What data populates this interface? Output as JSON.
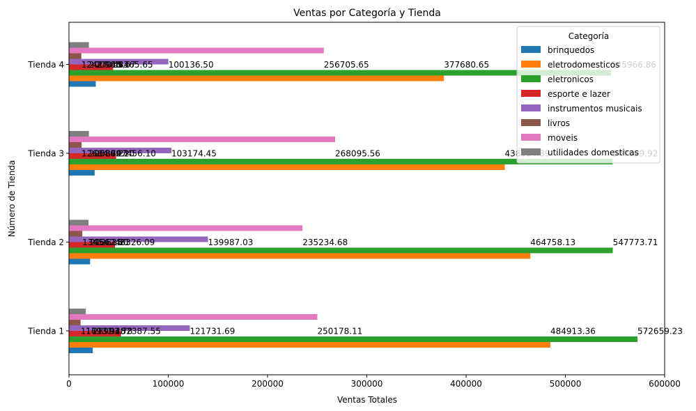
{
  "chart_data": {
    "type": "bar",
    "orientation": "horizontal",
    "title": "Ventas por Categoría y Tienda",
    "xlabel": "Ventas Totales",
    "ylabel": "Número de Tienda",
    "xlim": [
      0,
      600000
    ],
    "x_ticks": [
      0,
      100000,
      200000,
      300000,
      400000,
      500000,
      600000
    ],
    "x_tick_labels": [
      "0",
      "100000",
      "200000",
      "300000",
      "400000",
      "500000",
      "600000"
    ],
    "grid": false,
    "categories": [
      "Tienda 1",
      "Tienda 2",
      "Tienda 3",
      "Tienda 4"
    ],
    "legend": {
      "title": "Categoría",
      "placement": "top-right"
    },
    "series": [
      {
        "name": "brinquedos",
        "color": "#1f77b4",
        "values": [
          23993.78,
          21262.21,
          25869.2,
          27015.67
        ]
      },
      {
        "name": "eletrodomesticos",
        "color": "#ff7f0e",
        "values": [
          484913.36,
          464758.13,
          438984.89,
          377680.65
        ]
      },
      {
        "name": "eletronicos",
        "color": "#2ca02c",
        "values": [
          572659.23,
          547773.71,
          547699.92,
          545966.86
        ]
      },
      {
        "name": "esporte e lazer",
        "color": "#d62728",
        "values": [
          52387.55,
          46326.09,
          47456.1,
          44465.65
        ]
      },
      {
        "name": "instrumentos musicais",
        "color": "#9467bd",
        "values": [
          121731.69,
          139987.03,
          103174.45,
          100136.5
        ]
      },
      {
        "name": "livros",
        "color": "#8c564b",
        "values": [
          11713.92,
          13454.35,
          12664.7,
          12427.48
        ]
      },
      {
        "name": "moveis",
        "color": "#e377c2",
        "values": [
          250178.11,
          235234.68,
          268095.56,
          256705.65
        ]
      },
      {
        "name": "utilidades domesticas",
        "color": "#7f7f7f",
        "values": [
          16931.48,
          19662.6,
          20080.21,
          20098.83
        ]
      }
    ],
    "data_label_format": "2 decimals"
  }
}
